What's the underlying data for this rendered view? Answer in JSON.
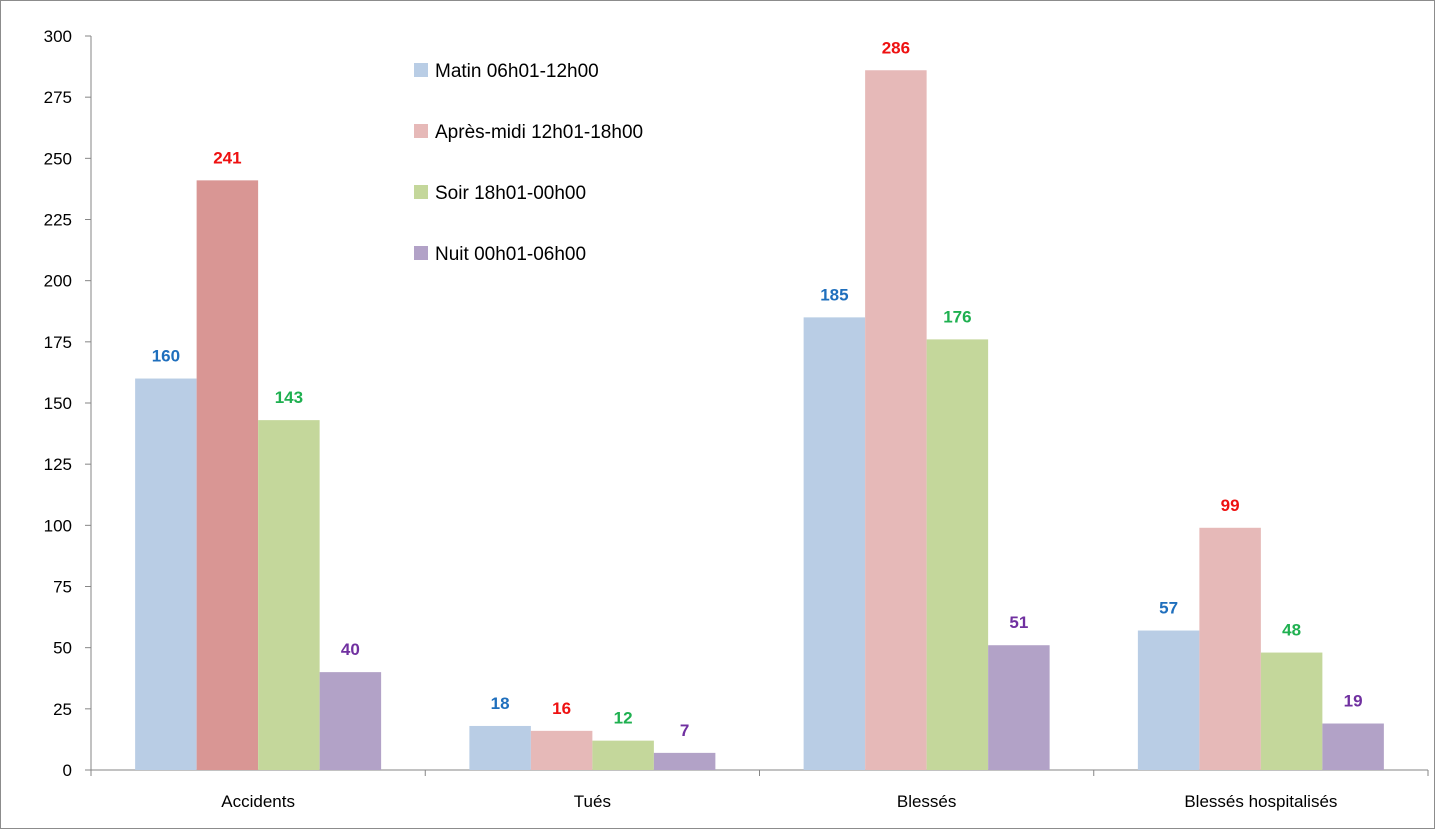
{
  "chart_data": {
    "type": "bar",
    "categories": [
      "Accidents",
      "Tués",
      "Blessés",
      "Blessés hospitalisés"
    ],
    "series": [
      {
        "name": "Matin 06h01-12h00",
        "values": [
          160,
          18,
          185,
          57
        ],
        "color": "#b9cde5",
        "label_color": "#1f6fbd"
      },
      {
        "name": "Après-midi 12h01-18h00",
        "values": [
          241,
          16,
          286,
          99
        ],
        "color": "#e6b9b8",
        "label_color": "#ee1111"
      },
      {
        "name": "Soir 18h01-00h00",
        "values": [
          143,
          12,
          176,
          48
        ],
        "color": "#c4d79b",
        "label_color": "#1fb050"
      },
      {
        "name": "Nuit 00h01-06h00",
        "values": [
          40,
          7,
          51,
          19
        ],
        "color": "#b2a2c7",
        "label_color": "#7030a0"
      }
    ],
    "highlight": {
      "series": 1,
      "category": 0,
      "color": "#d99694"
    },
    "ylim": [
      0,
      300
    ],
    "yticks": [
      0,
      25,
      50,
      75,
      100,
      125,
      150,
      175,
      200,
      225,
      250,
      275,
      300
    ],
    "grid": false,
    "legend": "top-center",
    "title": "",
    "xlabel": "",
    "ylabel": ""
  }
}
